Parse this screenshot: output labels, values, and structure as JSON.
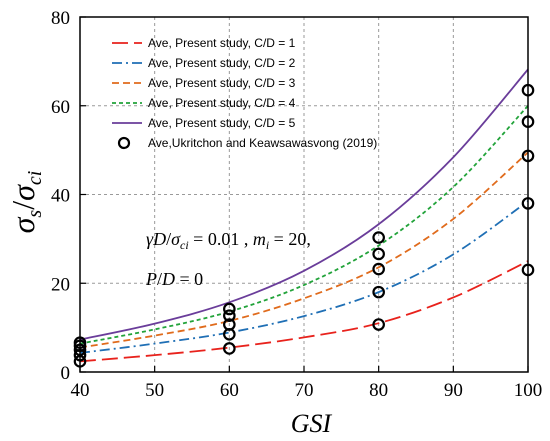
{
  "chart_data": {
    "type": "line",
    "xlabel": "GSI",
    "ylabel": "σs/σci",
    "ylabel_parts": {
      "sigma": "σ",
      "sub_s": "s",
      "slash": "/",
      "sub_ci": "ci"
    },
    "xlim": [
      40,
      100
    ],
    "ylim": [
      0,
      80
    ],
    "xticks": [
      40,
      50,
      60,
      70,
      80,
      90,
      100
    ],
    "yticks": [
      0,
      20,
      40,
      60,
      80
    ],
    "grid": true,
    "legend_position": "top-left",
    "annotation": {
      "line1": {
        "gamma": "γ",
        "D": "D",
        "sigma": "σ",
        "ci": "ci",
        "eq1": " = 0.01 , ",
        "m": "m",
        "i": "i",
        "eq2": " = 20,"
      },
      "line2": {
        "P": "P",
        "D": "D",
        "eq": " = 0"
      }
    },
    "series": [
      {
        "name": "Ave, Present study, C/D = 1",
        "color": "#e8221c",
        "dash": "long-dash",
        "x": [
          40,
          50,
          60,
          70,
          80,
          90,
          100
        ],
        "y": [
          2.4,
          3.8,
          5.5,
          7.8,
          11.0,
          16.8,
          25.0
        ]
      },
      {
        "name": "Ave, Present study, C/D = 2",
        "color": "#1f6fb5",
        "dash": "dash-dot",
        "x": [
          40,
          50,
          60,
          70,
          80,
          90,
          100
        ],
        "y": [
          4.3,
          6.4,
          8.9,
          12.6,
          18.0,
          26.5,
          38.5
        ]
      },
      {
        "name": "Ave, Present study, C/D = 3",
        "color": "#e06b1c",
        "dash": "dash",
        "x": [
          40,
          50,
          60,
          70,
          80,
          90,
          100
        ],
        "y": [
          5.5,
          8.2,
          11.5,
          16.6,
          23.6,
          34.5,
          49.5
        ]
      },
      {
        "name": "Ave, Present study, C/D = 4",
        "color": "#22a33a",
        "dash": "short-dash",
        "x": [
          40,
          50,
          60,
          70,
          80,
          90,
          100
        ],
        "y": [
          6.4,
          9.6,
          13.6,
          19.6,
          28.5,
          41.7,
          60.0
        ]
      },
      {
        "name": "Ave, Present study, C/D = 5",
        "color": "#6a3d9a",
        "dash": "solid",
        "x": [
          40,
          50,
          60,
          70,
          80,
          90,
          100
        ],
        "y": [
          7.3,
          10.9,
          15.7,
          22.8,
          33.3,
          48.4,
          68.2
        ]
      }
    ],
    "scatter": {
      "name": "Ave,Ukritchon and Keawsawasvong (2019)",
      "points": [
        {
          "x": 40,
          "y": 2.4
        },
        {
          "x": 40,
          "y": 3.8
        },
        {
          "x": 40,
          "y": 5.0
        },
        {
          "x": 40,
          "y": 5.9
        },
        {
          "x": 40,
          "y": 6.6
        },
        {
          "x": 60,
          "y": 5.3
        },
        {
          "x": 60,
          "y": 8.5
        },
        {
          "x": 60,
          "y": 10.7
        },
        {
          "x": 60,
          "y": 12.7
        },
        {
          "x": 60,
          "y": 14.2
        },
        {
          "x": 80,
          "y": 10.7
        },
        {
          "x": 80,
          "y": 18.0
        },
        {
          "x": 80,
          "y": 23.2
        },
        {
          "x": 80,
          "y": 26.6
        },
        {
          "x": 80,
          "y": 30.3
        },
        {
          "x": 100,
          "y": 23.0
        },
        {
          "x": 100,
          "y": 38.0
        },
        {
          "x": 100,
          "y": 48.7
        },
        {
          "x": 100,
          "y": 56.4
        },
        {
          "x": 100,
          "y": 63.5
        }
      ]
    }
  }
}
